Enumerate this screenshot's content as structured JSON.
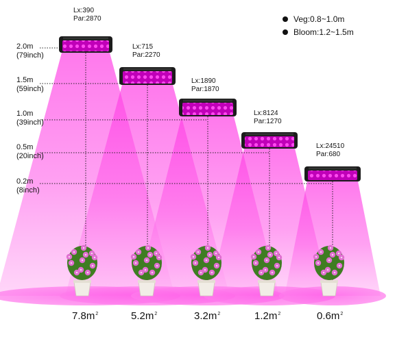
{
  "heights": [
    {
      "m": "2.0m",
      "inch": "(79inch)"
    },
    {
      "m": "1.5m",
      "inch": "(59inch)"
    },
    {
      "m": "1.0m",
      "inch": "(39inch)"
    },
    {
      "m": "0.5m",
      "inch": "(20inch)"
    },
    {
      "m": "0.2m",
      "inch": "(8inch)"
    }
  ],
  "lights": [
    {
      "lx": "Lx:390",
      "par": "Par:2870",
      "area": "7.8m",
      "area_unit": "2"
    },
    {
      "lx": "Lx:715",
      "par": "Par:2270",
      "area": "5.2m",
      "area_unit": "2"
    },
    {
      "lx": "Lx:1890",
      "par": "Par:1870",
      "area": "3.2m",
      "area_unit": "2"
    },
    {
      "lx": "Lx:8124",
      "par": "Par:1270",
      "area": "1.2m",
      "area_unit": "2"
    },
    {
      "lx": "Lx:24510",
      "par": "Par:680",
      "area": "0.6m",
      "area_unit": "2"
    }
  ],
  "legend": [
    {
      "label": "Veg:0.8~1.0m"
    },
    {
      "label": "Bloom:1.2~1.5m"
    }
  ],
  "colors": {
    "beam": "#ff4fe6",
    "beam_light": "#ffd2f6",
    "lamp": "#1c1c1c",
    "led": "#d400c8",
    "leaf": "#3f7d22",
    "flower": "#e06fd0",
    "pot": "#f1ede6"
  }
}
